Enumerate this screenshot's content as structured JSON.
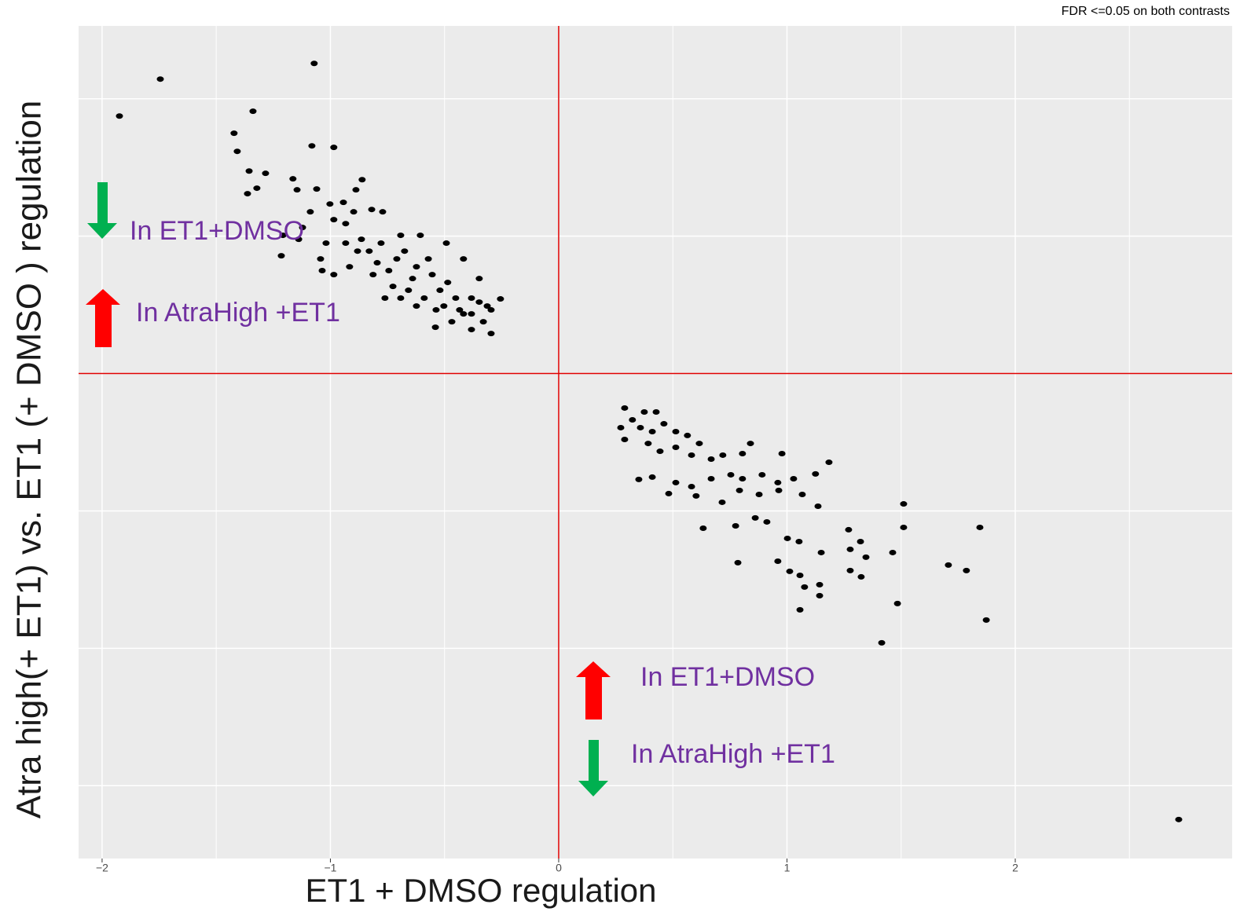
{
  "chart_data": {
    "type": "scatter",
    "subtitle": "FDR <=0.05 on both contrasts",
    "x_label": "ET1 + DMSO regulation",
    "y_label": "Atra high(+ ET1) vs. ET1 (+ DMSO ) regulation",
    "xlim": [
      -2.103,
      2.95
    ],
    "ylim": [
      -3.53,
      2.53
    ],
    "xticks": [
      {
        "value": -2,
        "label": "−2"
      },
      {
        "value": -1,
        "label": "−1"
      },
      0,
      1,
      2
    ],
    "x_minor_ticks": [
      -1.5,
      -0.5,
      0.5,
      1.5,
      2.5
    ],
    "yticks": [
      -3,
      -2,
      -1,
      0,
      1,
      2
    ],
    "grid": true,
    "reference_lines": {
      "x": 0,
      "y": 0,
      "color": "#e00000"
    },
    "color": "#000000",
    "annotations": [
      "In ET1+DMSO",
      "In AtraHigh +ET1",
      "In ET1+DMSO",
      "In AtraHigh +ET1"
    ],
    "x": [
      -1.924,
      -1.745,
      -1.071,
      -1.339,
      -1.422,
      -1.408,
      -1.081,
      -0.985,
      -1.356,
      -1.284,
      -1.322,
      -1.363,
      -1.164,
      -0.861,
      -1.146,
      -1.06,
      -0.888,
      -0.943,
      -0.819,
      -0.771,
      -1.208,
      -1.215,
      -1.043,
      -0.985,
      -1.002,
      -0.933,
      -0.864,
      -0.83,
      -0.795,
      -0.744,
      -0.692,
      -0.606,
      -0.675,
      -0.623,
      -0.571,
      -0.492,
      -0.417,
      -0.348,
      -0.255,
      -0.313,
      -0.382,
      -0.451,
      -0.52,
      -0.537,
      -0.589,
      -0.658,
      -0.726,
      -0.761,
      -0.54,
      -0.468,
      -0.382,
      -0.296,
      -0.33,
      -0.417,
      -0.486,
      -0.554,
      -0.64,
      -0.709,
      -0.778,
      -0.881,
      -0.933,
      -1.019,
      -1.122,
      -1.088,
      -0.985,
      -0.898,
      -0.382,
      -0.434,
      -0.348,
      -0.296,
      -0.503,
      -0.623,
      -0.692,
      -0.813,
      -0.916,
      -1.036,
      -1.139,
      0.289,
      0.272,
      0.323,
      0.375,
      0.427,
      0.358,
      0.41,
      0.461,
      0.513,
      0.564,
      0.616,
      0.513,
      0.444,
      0.392,
      0.289,
      0.582,
      0.668,
      0.719,
      0.805,
      0.84,
      0.978,
      1.184,
      1.125,
      1.029,
      0.96,
      0.891,
      0.805,
      0.754,
      0.668,
      0.582,
      0.513,
      0.41,
      0.351,
      0.482,
      0.602,
      0.716,
      0.792,
      0.878,
      0.964,
      1.067,
      1.136,
      0.912,
      0.861,
      0.775,
      0.633,
      1.002,
      1.053,
      1.27,
      1.322,
      1.511,
      1.511,
      1.845,
      0.785,
      0.96,
      1.012,
      1.15,
      1.277,
      1.346,
      1.463,
      1.707,
      1.786,
      1.277,
      1.325,
      1.057,
      1.077,
      1.143,
      1.143,
      1.057,
      1.484,
      1.873,
      1.415,
      2.716
    ],
    "y": [
      1.874,
      2.143,
      2.257,
      1.909,
      1.749,
      1.617,
      1.657,
      1.646,
      1.474,
      1.457,
      1.349,
      1.309,
      1.417,
      1.411,
      1.337,
      1.343,
      1.337,
      1.246,
      1.194,
      1.177,
      1.006,
      0.857,
      0.834,
      0.72,
      1.234,
      1.091,
      0.977,
      0.891,
      0.806,
      0.749,
      1.006,
      1.006,
      0.891,
      0.777,
      0.834,
      0.949,
      0.834,
      0.691,
      0.543,
      0.491,
      0.434,
      0.549,
      0.606,
      0.463,
      0.549,
      0.606,
      0.634,
      0.549,
      0.337,
      0.377,
      0.32,
      0.291,
      0.377,
      0.434,
      0.663,
      0.72,
      0.691,
      0.834,
      0.949,
      0.891,
      0.949,
      0.949,
      1.063,
      1.177,
      1.12,
      1.177,
      0.549,
      0.463,
      0.52,
      0.463,
      0.491,
      0.491,
      0.549,
      0.72,
      0.777,
      0.749,
      0.977,
      -0.251,
      -0.394,
      -0.337,
      -0.28,
      -0.28,
      -0.394,
      -0.423,
      -0.366,
      -0.423,
      -0.451,
      -0.509,
      -0.537,
      -0.566,
      -0.509,
      -0.48,
      -0.594,
      -0.623,
      -0.594,
      -0.583,
      -0.509,
      -0.583,
      -0.646,
      -0.731,
      -0.766,
      -0.794,
      -0.737,
      -0.766,
      -0.737,
      -0.766,
      -0.823,
      -0.794,
      -0.754,
      -0.771,
      -0.874,
      -0.891,
      -0.937,
      -0.851,
      -0.88,
      -0.851,
      -0.88,
      -0.966,
      -1.08,
      -1.051,
      -1.109,
      -1.126,
      -1.2,
      -1.223,
      -1.137,
      -1.223,
      -0.949,
      -1.12,
      -1.12,
      -1.377,
      -1.366,
      -1.44,
      -1.303,
      -1.28,
      -1.337,
      -1.303,
      -1.394,
      -1.434,
      -1.434,
      -1.48,
      -1.469,
      -1.554,
      -1.537,
      -1.617,
      -1.72,
      -1.674,
      -1.794,
      -1.96,
      -3.246
    ]
  }
}
